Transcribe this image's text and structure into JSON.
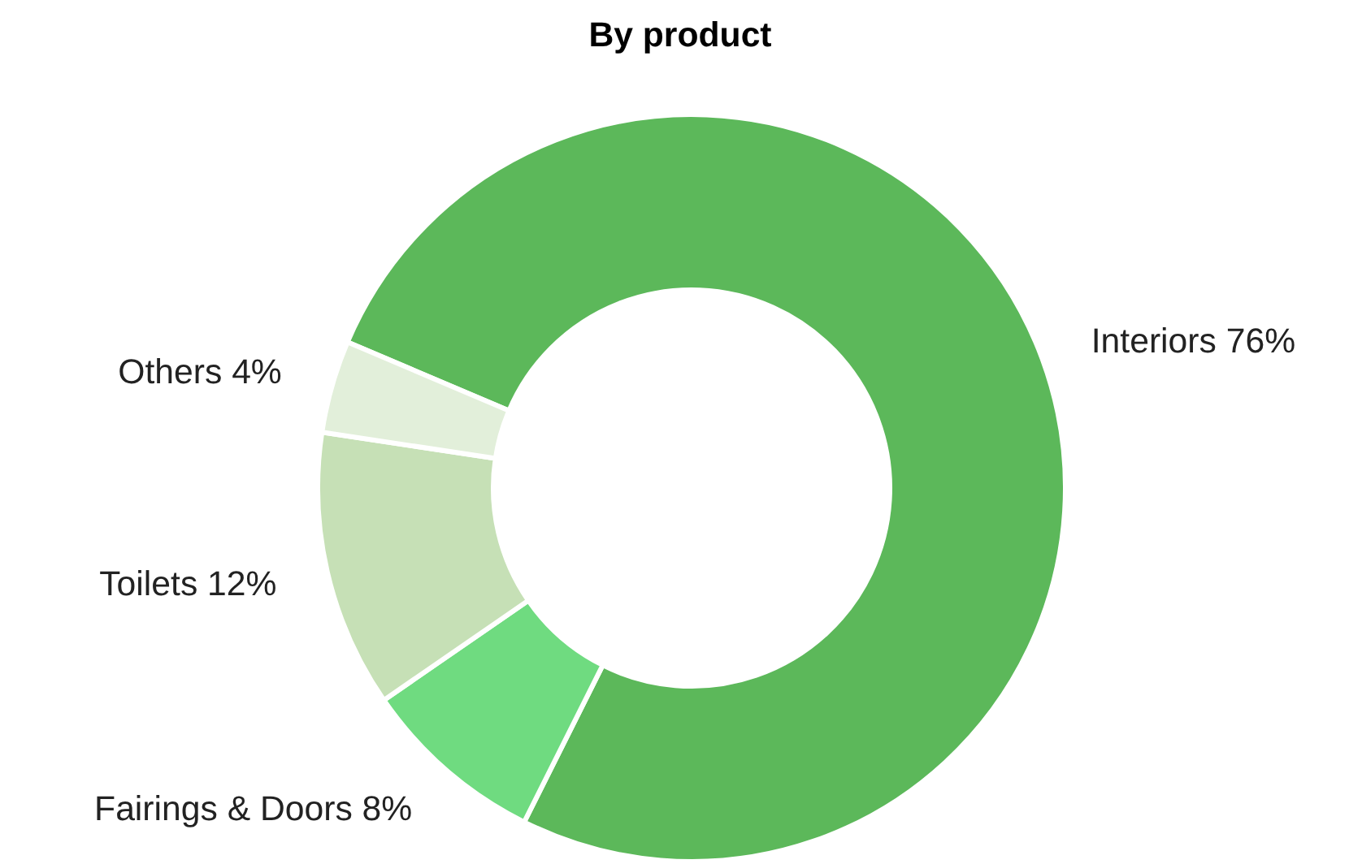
{
  "chart_data": {
    "type": "donut",
    "title": "By product",
    "categories": [
      "Interiors",
      "Fairings & Doors",
      "Toilets",
      "Others"
    ],
    "values": [
      76,
      8,
      12,
      4
    ],
    "value_labels": [
      "76%",
      "8%",
      "12%",
      "4%"
    ],
    "colors": [
      "#5cb85a",
      "#6fdb80",
      "#c6e0b6",
      "#e2efda"
    ]
  }
}
